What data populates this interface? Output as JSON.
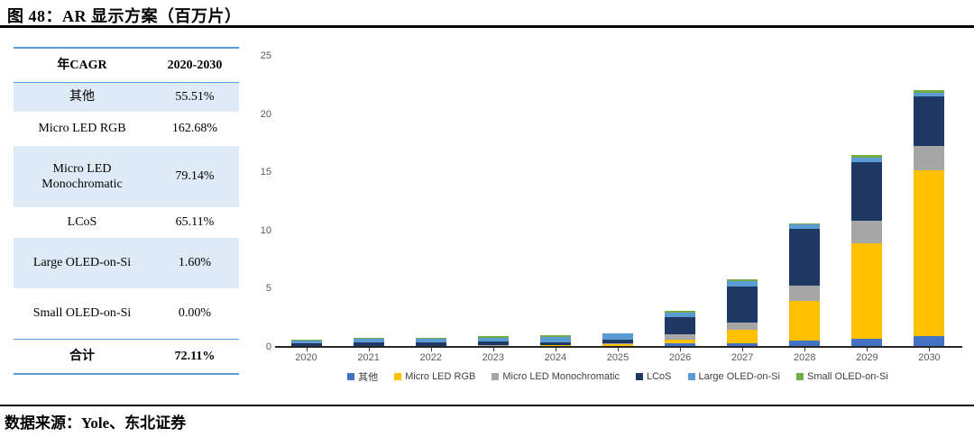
{
  "figure": {
    "title": "图 48：AR 显示方案（百万片）",
    "source": "数据来源：Yole、东北证券"
  },
  "table": {
    "col1_header": "年CAGR",
    "col2_header": "2020-2030",
    "rows": [
      {
        "label": "其他",
        "value": "55.51%",
        "shaded": true
      },
      {
        "label": "Micro LED RGB",
        "value": "162.68%",
        "shaded": false
      },
      {
        "label": "Micro LED Monochromatic",
        "value": "79.14%",
        "shaded": true
      },
      {
        "label": "LCoS",
        "value": "65.11%",
        "shaded": false
      },
      {
        "label": "Large OLED-on-Si",
        "value": "1.60%",
        "shaded": true
      },
      {
        "label": "Small OLED-on-Si",
        "value": "0.00%",
        "shaded": false
      }
    ],
    "total": {
      "label": "合计",
      "value": "72.11%"
    }
  },
  "chart_data": {
    "type": "bar",
    "stacked": true,
    "title": "",
    "xlabel": "",
    "ylabel": "",
    "ylim": [
      0,
      25
    ],
    "yticks": [
      0,
      5,
      10,
      15,
      20,
      25
    ],
    "grid": false,
    "legend_position": "bottom",
    "categories": [
      "2020",
      "2021",
      "2022",
      "2023",
      "2024",
      "2025",
      "2026",
      "2027",
      "2028",
      "2029",
      "2030"
    ],
    "series": [
      {
        "name": "其他",
        "color": "#4472C4",
        "values": [
          0.06,
          0.06,
          0.06,
          0.07,
          0.08,
          0.1,
          0.28,
          0.33,
          0.52,
          0.72,
          0.93
        ]
      },
      {
        "name": "Micro LED RGB",
        "color": "#FFC000",
        "values": [
          0.0,
          0.0,
          0.02,
          0.03,
          0.06,
          0.12,
          0.33,
          1.11,
          3.46,
          8.18,
          14.24
        ]
      },
      {
        "name": "Micro LED Monochromatic",
        "color": "#A6A6A6",
        "values": [
          0.02,
          0.02,
          0.03,
          0.05,
          0.05,
          0.08,
          0.44,
          0.65,
          1.32,
          1.94,
          2.06
        ]
      },
      {
        "name": "LCoS",
        "color": "#203864",
        "values": [
          0.22,
          0.28,
          0.26,
          0.3,
          0.22,
          0.33,
          1.52,
          3.1,
          4.83,
          5.01,
          4.28
        ]
      },
      {
        "name": "Large OLED-on-Si",
        "color": "#5B9BD5",
        "values": [
          0.21,
          0.36,
          0.33,
          0.35,
          0.45,
          0.5,
          0.36,
          0.44,
          0.39,
          0.39,
          0.31
        ]
      },
      {
        "name": "Small OLED-on-Si",
        "color": "#70AD47",
        "values": [
          0.15,
          0.02,
          0.1,
          0.1,
          0.12,
          0.05,
          0.18,
          0.21,
          0.05,
          0.23,
          0.26
        ]
      }
    ]
  }
}
